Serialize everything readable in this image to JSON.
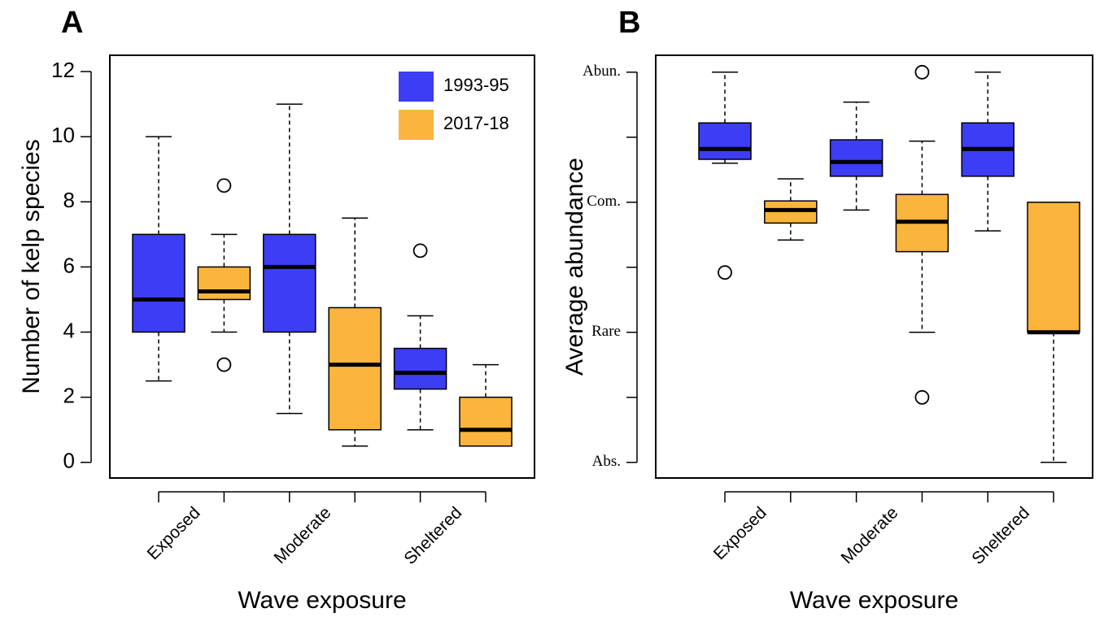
{
  "chart_data": [
    {
      "type": "boxplot",
      "panel_label": "A",
      "ylabel": "Number of kelp species",
      "xlabel": "Wave exposure",
      "categories": [
        "Exposed",
        "Moderate",
        "Sheltered"
      ],
      "series": [
        {
          "name": "1993-95",
          "color": "#3d3df5",
          "boxes": [
            {
              "low": 2.5,
              "q1": 4,
              "median": 5,
              "q3": 7,
              "high": 10,
              "outliers": []
            },
            {
              "low": 1.5,
              "q1": 4,
              "median": 6,
              "q3": 7,
              "high": 11,
              "outliers": []
            },
            {
              "low": 1,
              "q1": 2.25,
              "median": 2.75,
              "q3": 3.5,
              "high": 4.5,
              "outliers": [
                6.5
              ]
            }
          ]
        },
        {
          "name": "2017-18",
          "color": "#fbb43c",
          "boxes": [
            {
              "low": 4,
              "q1": 5,
              "median": 5.25,
              "q3": 6,
              "high": 7,
              "outliers": [
                8.5,
                3
              ]
            },
            {
              "low": 0.5,
              "q1": 1,
              "median": 3,
              "q3": 4.75,
              "high": 7.5,
              "outliers": []
            },
            {
              "low": 0.5,
              "q1": 0.5,
              "median": 1,
              "q3": 2,
              "high": 3,
              "outliers": []
            }
          ]
        }
      ],
      "ylim": [
        -0.48,
        12.5
      ],
      "yticks": [
        0,
        2,
        4,
        6,
        8,
        10,
        12
      ],
      "legend": "topright"
    },
    {
      "type": "boxplot",
      "panel_label": "B",
      "ylabel": "Average abundance",
      "xlabel": "Wave exposure",
      "categories": [
        "Exposed",
        "Moderate",
        "Sheltered"
      ],
      "series": [
        {
          "color": "#3d3df5",
          "boxes": [
            {
              "low": 2.3,
              "q1": 2.33,
              "median": 2.41,
              "q3": 2.61,
              "high": 3,
              "outliers": [
                1.46
              ]
            },
            {
              "low": 1.94,
              "q1": 2.2,
              "median": 2.31,
              "q3": 2.48,
              "high": 2.77,
              "outliers": []
            },
            {
              "low": 1.78,
              "q1": 2.2,
              "median": 2.41,
              "q3": 2.61,
              "high": 3,
              "outliers": []
            }
          ]
        },
        {
          "color": "#fbb43c",
          "boxes": [
            {
              "low": 1.71,
              "q1": 1.84,
              "median": 1.94,
              "q3": 2.01,
              "high": 2.18,
              "outliers": []
            },
            {
              "low": 1,
              "q1": 1.62,
              "median": 1.85,
              "q3": 2.06,
              "high": 2.47,
              "outliers": [
                3,
                0.5
              ]
            },
            {
              "low": 0,
              "q1": 1,
              "median": 1,
              "q3": 2,
              "high": 2,
              "outliers": []
            }
          ]
        }
      ],
      "ylim": [
        -0.12,
        3.13
      ],
      "yticks": [
        {
          "value": 0,
          "label": "Abs."
        },
        {
          "value": 1,
          "label": "Rare"
        },
        {
          "value": 2,
          "label": "Com."
        },
        {
          "value": 3,
          "label": "Abun."
        }
      ],
      "yminorticks": [
        0.5,
        1.5,
        2.5
      ]
    }
  ]
}
